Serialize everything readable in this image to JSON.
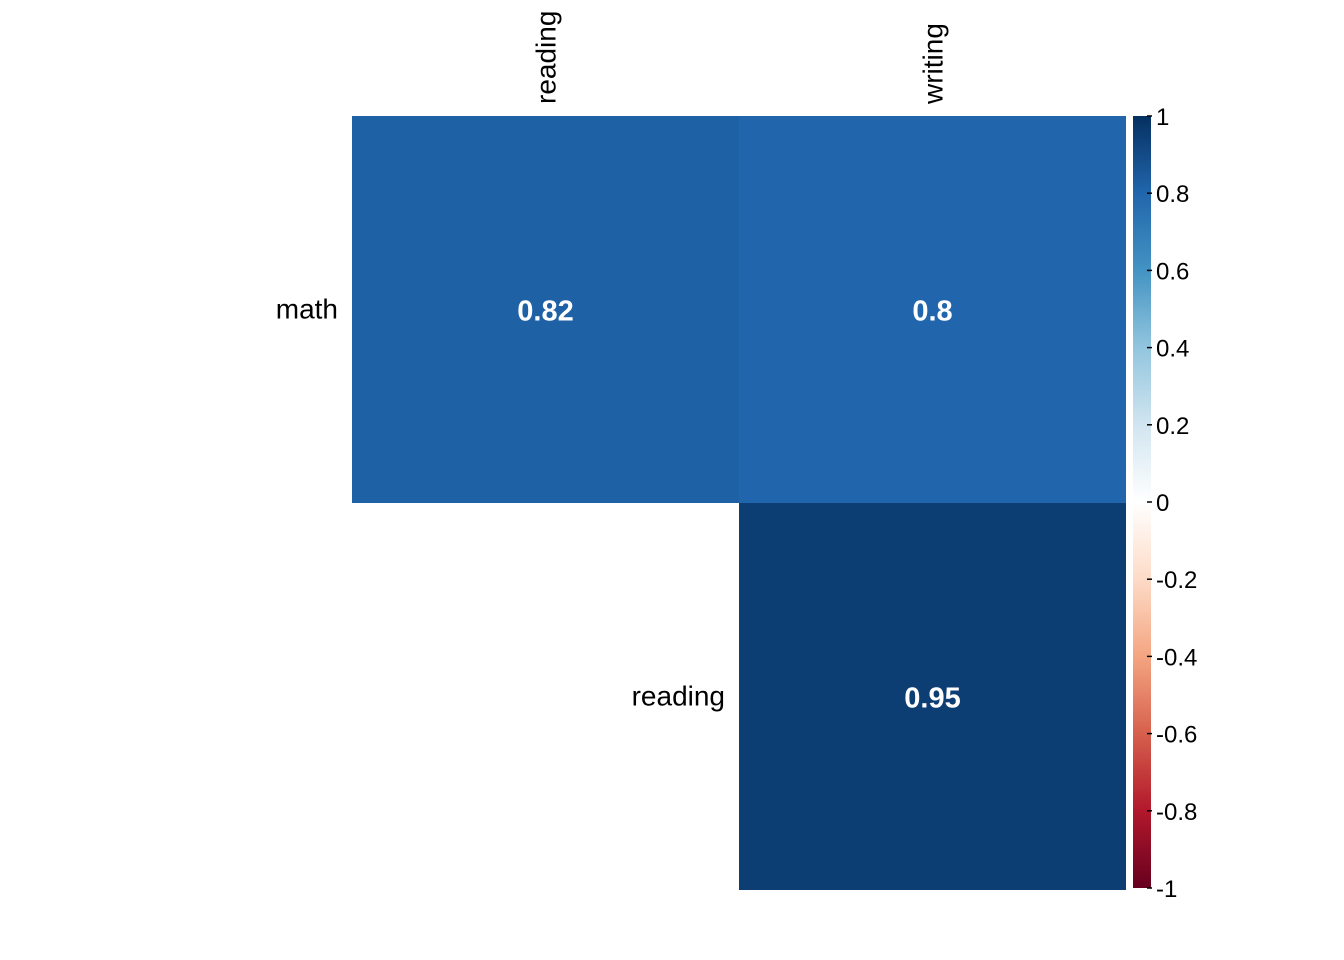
{
  "chart_data": {
    "type": "heatmap",
    "rows": [
      "math",
      "reading"
    ],
    "columns": [
      "reading",
      "writing"
    ],
    "cells": [
      {
        "row": "math",
        "col": "reading",
        "value": 0.82,
        "label": "0.82"
      },
      {
        "row": "math",
        "col": "writing",
        "value": 0.8,
        "label": "0.8"
      },
      {
        "row": "reading",
        "col": "writing",
        "value": 0.95,
        "label": "0.95"
      }
    ],
    "colorbar": {
      "range": [
        -1,
        1
      ],
      "ticks": [
        "1",
        "0.8",
        "0.6",
        "0.4",
        "0.2",
        "0",
        "-0.2",
        "-0.4",
        "-0.6",
        "-0.8",
        "-1"
      ],
      "colors": [
        "#67001F",
        "#B2182B",
        "#D6604D",
        "#F4A582",
        "#FDDBC7",
        "#FFFFFF",
        "#D1E5F0",
        "#92C5DE",
        "#4393C3",
        "#2166AC",
        "#053061"
      ]
    }
  }
}
